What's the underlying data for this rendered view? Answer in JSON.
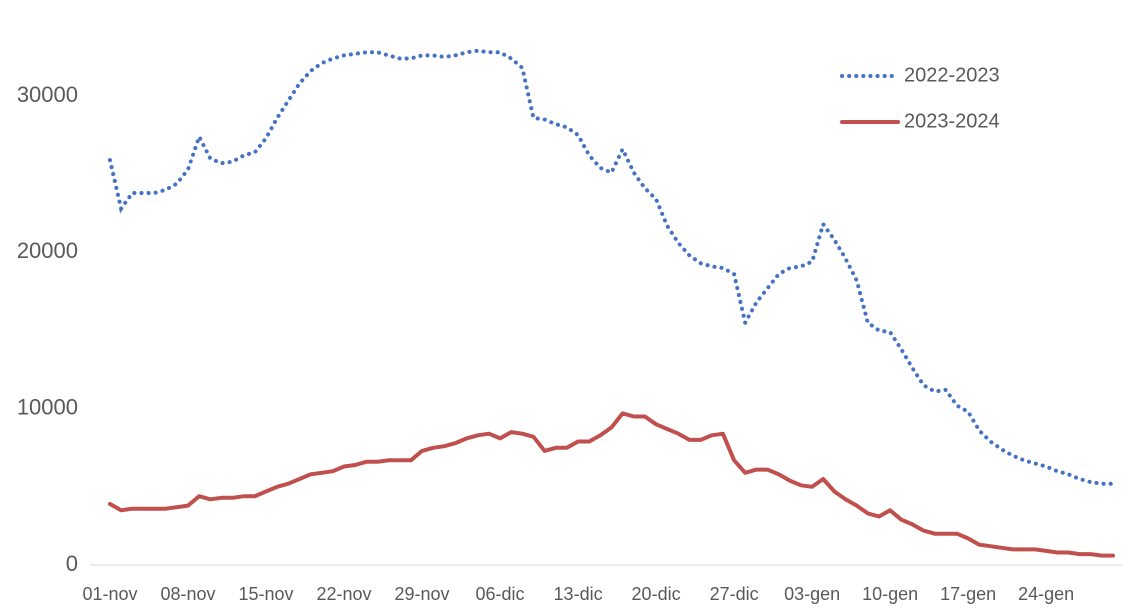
{
  "chart_data": {
    "type": "line",
    "categories": [
      "01-nov",
      null,
      null,
      null,
      null,
      null,
      null,
      "08-nov",
      null,
      null,
      null,
      null,
      null,
      null,
      "15-nov",
      null,
      null,
      null,
      null,
      null,
      null,
      "22-nov",
      null,
      null,
      null,
      null,
      null,
      null,
      "29-nov",
      null,
      null,
      null,
      null,
      null,
      null,
      "06-dic",
      null,
      null,
      null,
      null,
      null,
      null,
      "13-dic",
      null,
      null,
      null,
      null,
      null,
      null,
      "20-dic",
      null,
      null,
      null,
      null,
      null,
      null,
      "27-dic",
      null,
      null,
      null,
      null,
      null,
      null,
      "03-gen",
      null,
      null,
      null,
      null,
      null,
      null,
      "10-gen",
      null,
      null,
      null,
      null,
      null,
      null,
      "17-gen",
      null,
      null,
      null,
      null,
      null,
      null,
      "24-gen",
      null,
      null,
      null,
      null,
      null,
      null
    ],
    "series": [
      {
        "name": "2022-2023",
        "color": "#4472c4",
        "dash": "dotted",
        "values": [
          25900,
          22800,
          23800,
          23800,
          23800,
          24000,
          24400,
          25300,
          27400,
          26000,
          25700,
          25800,
          26200,
          26400,
          27300,
          28600,
          29700,
          30800,
          31600,
          32100,
          32400,
          32600,
          32700,
          32800,
          32800,
          32600,
          32400,
          32400,
          32600,
          32600,
          32500,
          32600,
          32800,
          32900,
          32800,
          32800,
          32400,
          31800,
          28600,
          28500,
          28200,
          28000,
          27500,
          26200,
          25400,
          25100,
          26600,
          25100,
          24100,
          23400,
          21700,
          20600,
          19800,
          19300,
          19100,
          19000,
          18600,
          15500,
          16800,
          17700,
          18600,
          19000,
          19100,
          19400,
          21800,
          20800,
          19600,
          18200,
          15500,
          15000,
          14900,
          13800,
          12600,
          11500,
          11100,
          11200,
          10200,
          9800,
          8600,
          7900,
          7400,
          7000,
          6700,
          6500,
          6300,
          6000,
          5800,
          5500,
          5300,
          5200,
          5200
        ]
      },
      {
        "name": "2023-2024",
        "color": "#c0504d",
        "dash": "solid",
        "values": [
          3900,
          3500,
          3600,
          3600,
          3600,
          3600,
          3700,
          3800,
          4400,
          4200,
          4300,
          4300,
          4400,
          4400,
          4700,
          5000,
          5200,
          5500,
          5800,
          5900,
          6000,
          6300,
          6400,
          6600,
          6600,
          6700,
          6700,
          6700,
          7300,
          7500,
          7600,
          7800,
          8100,
          8300,
          8400,
          8100,
          8500,
          8400,
          8200,
          7300,
          7500,
          7500,
          7900,
          7900,
          8300,
          8800,
          9700,
          9500,
          9500,
          9000,
          8700,
          8400,
          8000,
          8000,
          8300,
          8400,
          6700,
          5900,
          6100,
          6100,
          5800,
          5400,
          5100,
          5000,
          5500,
          4700,
          4200,
          3800,
          3300,
          3100,
          3500,
          2900,
          2600,
          2200,
          2000,
          2000,
          2000,
          1700,
          1300,
          1200,
          1100,
          1000,
          1000,
          1000,
          900,
          800,
          800,
          700,
          700,
          600,
          600
        ]
      }
    ],
    "ylim": [
      0,
      34000
    ],
    "yticks": [
      0,
      10000,
      20000,
      30000
    ],
    "grid": false,
    "legend": "top-right"
  }
}
